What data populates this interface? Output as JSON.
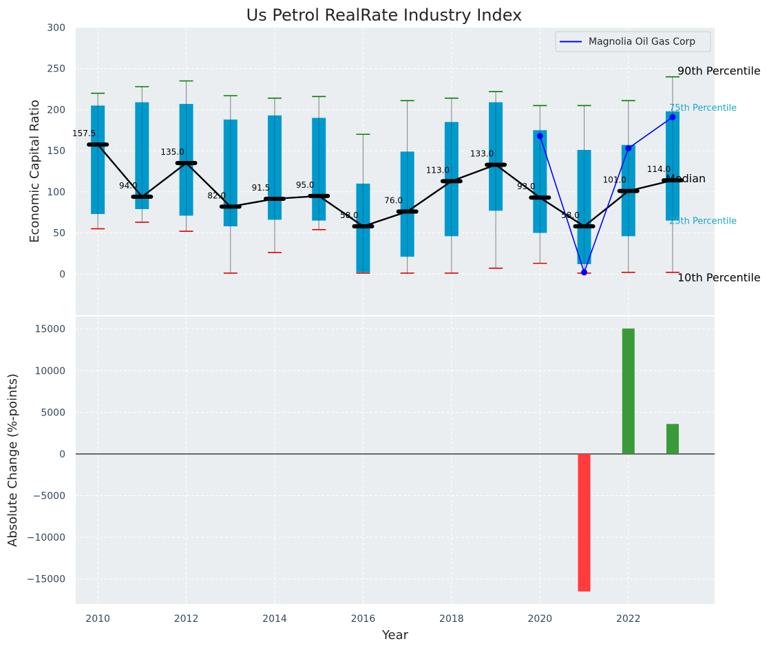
{
  "chart_data": [
    {
      "type": "box-range",
      "title": "Us Petrol RealRate Industry Index",
      "ylabel": "Economic Capital Ratio",
      "ylim": [
        -50,
        300
      ],
      "yticks": [
        0,
        50,
        100,
        150,
        200,
        250,
        300
      ],
      "x": [
        2010,
        2011,
        2012,
        2013,
        2014,
        2015,
        2016,
        2017,
        2018,
        2019,
        2020,
        2021,
        2022,
        2023
      ],
      "p10": [
        55,
        63,
        52,
        1,
        26,
        54,
        1,
        1,
        1,
        7,
        13,
        1,
        2,
        2
      ],
      "p25": [
        73,
        79,
        71,
        58,
        66,
        65,
        2,
        21,
        46,
        77,
        50,
        12,
        46,
        65
      ],
      "median": [
        157.5,
        94.0,
        135.0,
        82.0,
        91.5,
        95.0,
        58.0,
        76.0,
        113.0,
        133.0,
        93.0,
        58.0,
        101.0,
        114.0
      ],
      "median_labels": [
        "157.5",
        "94.0",
        "135.0",
        "82.0",
        "91.5",
        "95.0",
        "58.0",
        "76.0",
        "113.0",
        "133.0",
        "93.0",
        "58.0",
        "101.0",
        "114.0"
      ],
      "p75": [
        205,
        209,
        207,
        188,
        193,
        190,
        110,
        149,
        185,
        209,
        175,
        151,
        157,
        198
      ],
      "p90": [
        220,
        228,
        235,
        217,
        214,
        216,
        170,
        211,
        214,
        222,
        205,
        205,
        211,
        240
      ],
      "company": {
        "name": "Magnolia Oil Gas Corp",
        "x": [
          2020,
          2021,
          2022,
          2023
        ],
        "values": [
          168,
          2,
          153,
          191
        ]
      },
      "annotations": {
        "p90": "90th Percentile",
        "p75": "75th Percentile",
        "median": "Median",
        "p25": "25th Percentile",
        "p10": "10th Percentile"
      },
      "legend": {
        "position": "top-right",
        "entries": [
          "Magnolia Oil Gas Corp"
        ]
      },
      "grid": true
    },
    {
      "type": "bar",
      "ylabel": "Absolute Change (%-points)",
      "xlabel": "Year",
      "ylim": [
        -18000,
        16500
      ],
      "yticks": [
        -15000,
        -10000,
        -5000,
        0,
        5000,
        10000,
        15000
      ],
      "ytick_labels": [
        "−15000",
        "−10000",
        "−5000",
        "0",
        "5000",
        "10000",
        "15000"
      ],
      "x": [
        2021,
        2022,
        2023
      ],
      "values": [
        -16500,
        15050,
        3600
      ],
      "xticks": [
        2010,
        2012,
        2014,
        2016,
        2018,
        2020,
        2022
      ],
      "xlim": [
        2009.5,
        2023.95
      ],
      "grid": true
    }
  ],
  "colors": {
    "panel_bg": "#eaeef0",
    "box": "#0099cc",
    "p90_cap": "#008000",
    "p10_cap": "#e00000",
    "median_line": "#000000",
    "company_line": "#0000ff",
    "bar_pos": "#3a9a3a",
    "bar_neg": "#ff3b3b",
    "annotation_small": "#1aa6d1"
  }
}
